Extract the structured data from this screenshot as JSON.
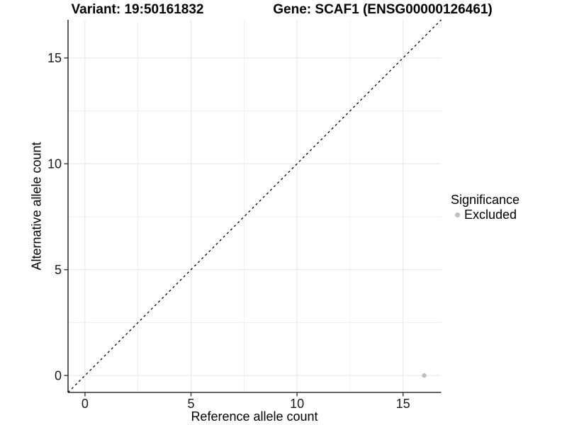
{
  "chart_data": {
    "type": "scatter",
    "title_left": "Variant: 19:50161832",
    "title_right": "Gene: SCAF1 (ENSG00000126461)",
    "xlabel": "Reference allele count",
    "ylabel": "Alternative allele count",
    "xlim": [
      -0.8,
      16.8
    ],
    "ylim": [
      -0.8,
      16.8
    ],
    "x_ticks": [
      0,
      5,
      10,
      15
    ],
    "y_ticks": [
      0,
      5,
      10,
      15
    ],
    "x_minor": [
      2.5,
      7.5,
      12.5
    ],
    "y_minor": [
      2.5,
      7.5,
      12.5
    ],
    "grid": true,
    "identity_line": {
      "style": "dashed",
      "color": "#000000",
      "x1": -0.8,
      "y1": -0.8,
      "x2": 16.8,
      "y2": 16.8
    },
    "series": [
      {
        "name": "Excluded",
        "color": "#bebebe",
        "point_radius": 3.2,
        "points": [
          {
            "x": 16,
            "y": 0
          }
        ]
      }
    ],
    "legend": {
      "title": "Significance",
      "position": "right",
      "items": [
        {
          "label": "Excluded",
          "color": "#bebebe",
          "marker": "dot"
        }
      ]
    },
    "colors": {
      "axis_line": "#333333",
      "tick_mark": "#333333",
      "tick_text": "#1a1a1a",
      "grid_major": "#e6e6e6",
      "grid_minor": "#efefef",
      "background": "#ffffff"
    }
  }
}
